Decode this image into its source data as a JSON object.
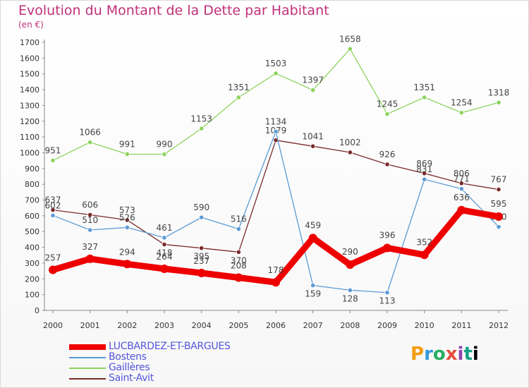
{
  "title": "Evolution du Montant de la Dette par Habitant",
  "subtitle": "(en €)",
  "logo_text": "Proxiti",
  "chart_data": {
    "type": "line",
    "x": [
      "2000",
      "2001",
      "2002",
      "2003",
      "2004",
      "2005",
      "2006",
      "2007",
      "2008",
      "2009",
      "2010",
      "2011",
      "2012"
    ],
    "ylim": [
      0,
      1700
    ],
    "yticks": [
      0,
      100,
      200,
      300,
      400,
      500,
      600,
      700,
      800,
      900,
      1000,
      1100,
      1200,
      1300,
      1400,
      1500,
      1600,
      1700
    ],
    "grid": false,
    "legend_position": "bottom-left",
    "series": [
      {
        "name": "LUCBARDEZ-ET-BARGUES",
        "color": "#ee0000",
        "values": [
          257,
          327,
          294,
          264,
          237,
          208,
          178,
          459,
          290,
          396,
          352,
          636,
          595
        ]
      },
      {
        "name": "Bostens",
        "color": "#5b9bd5",
        "values": [
          602,
          510,
          526,
          461,
          590,
          516,
          1134,
          159,
          128,
          113,
          831,
          771,
          530
        ]
      },
      {
        "name": "Gaillères",
        "color": "#8dd35f",
        "values": [
          951,
          1066,
          991,
          990,
          1153,
          1351,
          1503,
          1397,
          1658,
          1245,
          1351,
          1254,
          1318
        ]
      },
      {
        "name": "Saint-Avit",
        "color": "#7a2a2a",
        "values": [
          637,
          606,
          573,
          418,
          395,
          370,
          1079,
          1041,
          1002,
          926,
          869,
          806,
          767
        ]
      }
    ]
  }
}
